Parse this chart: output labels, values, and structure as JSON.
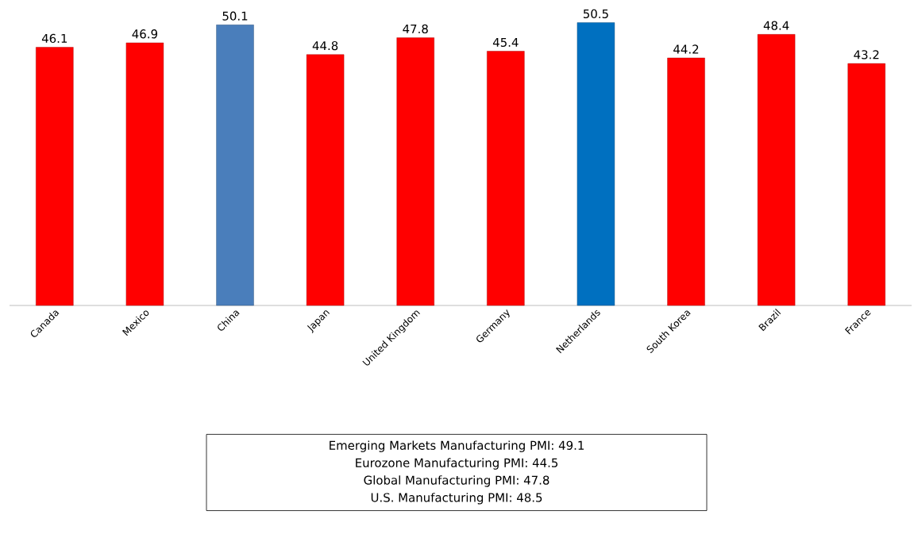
{
  "chart_data": {
    "type": "bar",
    "categories": [
      "Canada",
      "Mexico",
      "China",
      "Japan",
      "United Kingdom",
      "Germany",
      "Netherlands",
      "South Korea",
      "Brazil",
      "France"
    ],
    "values": [
      46.1,
      46.9,
      50.1,
      44.8,
      47.8,
      45.4,
      50.5,
      44.2,
      48.4,
      43.2
    ],
    "colors": [
      "#ff0000",
      "#ff0000",
      "#4a7ebb",
      "#ff0000",
      "#ff0000",
      "#ff0000",
      "#0070c0",
      "#ff0000",
      "#ff0000",
      "#ff0000"
    ],
    "data_labels": true,
    "annotations": [
      "Emerging  Markets Manufacturing  PMI: 49.1",
      "Eurozone  Manufacturing  PMI: 44.5",
      "Global  Manufacturing  PMI: 47.8",
      "U.S.  Manufacturing  PMI: 48.5"
    ]
  }
}
